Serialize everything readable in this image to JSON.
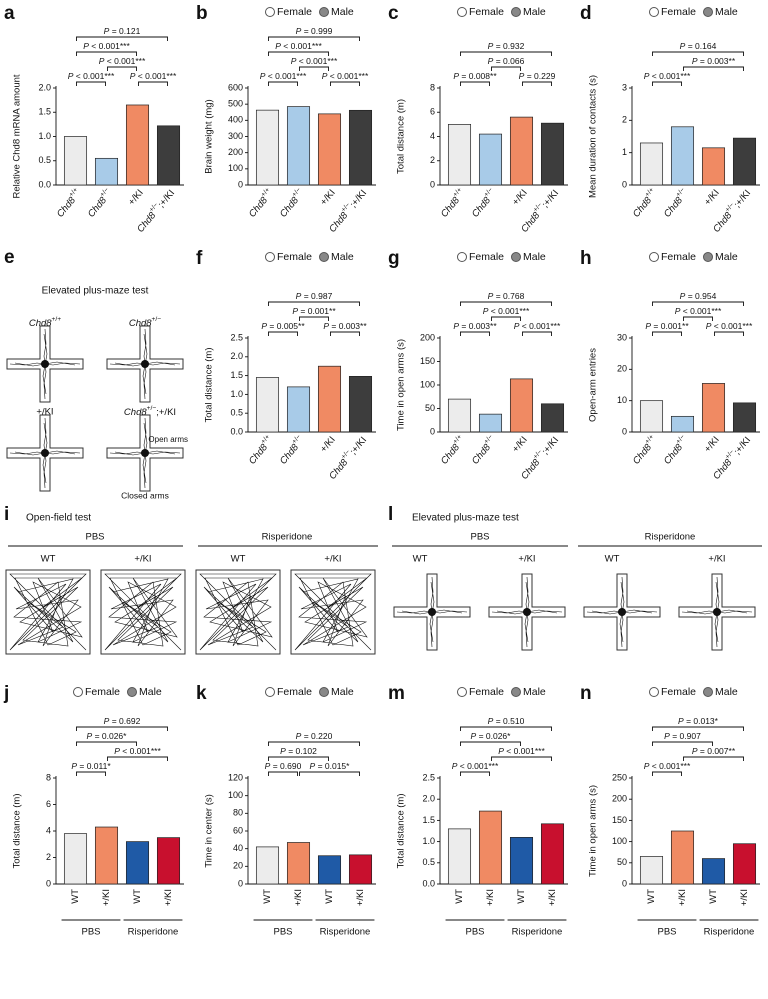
{
  "chart_data": [
    {
      "panel": "a",
      "type": "bar",
      "ylabel": "Relative Chd8 mRNA amount",
      "categories": [
        "Chd8+/+",
        "Chd8+/−",
        "+/KI",
        "Chd8+/−;+/KI"
      ],
      "values": [
        1.0,
        0.55,
        1.65,
        1.22
      ],
      "colors": [
        "#ececec",
        "#a8cbe8",
        "#f08a63",
        "#3d3d3d"
      ],
      "ylim": [
        0,
        2
      ],
      "yticks": [
        {
          "value": 0,
          "label": "0.0"
        },
        0.5,
        {
          "value": 1,
          "label": "1.0"
        },
        1.5,
        {
          "value": 2,
          "label": "2.0"
        }
      ],
      "comparisons": [
        {
          "pair": [
            0,
            1
          ],
          "label": "P < 0.001***"
        },
        {
          "pair": [
            1,
            2
          ],
          "label": "P < 0.001***"
        },
        {
          "pair": [
            2,
            3
          ],
          "label": "P < 0.001***"
        },
        {
          "pair": [
            0,
            2
          ],
          "label": "P < 0.001***"
        },
        {
          "pair": [
            0,
            3
          ],
          "label": "P = 0.121"
        }
      ]
    },
    {
      "panel": "b",
      "type": "bar",
      "ylabel": "Brain weight (mg)",
      "legend": [
        "Female",
        "Male"
      ],
      "categories": [
        "Chd8+/+",
        "Chd8+/−",
        "+/KI",
        "Chd8+/−;+/KI"
      ],
      "values": [
        463,
        485,
        440,
        462
      ],
      "colors": [
        "#ececec",
        "#a8cbe8",
        "#f08a63",
        "#3d3d3d"
      ],
      "ylim": [
        0,
        600
      ],
      "yticks": [
        0,
        100,
        200,
        300,
        400,
        500,
        600
      ],
      "comparisons": [
        {
          "pair": [
            0,
            1
          ],
          "label": "P < 0.001***"
        },
        {
          "pair": [
            1,
            2
          ],
          "label": "P < 0.001***"
        },
        {
          "pair": [
            2,
            3
          ],
          "label": "P < 0.001***"
        },
        {
          "pair": [
            0,
            2
          ],
          "label": "P < 0.001***"
        },
        {
          "pair": [
            0,
            3
          ],
          "label": "P = 0.999"
        }
      ]
    },
    {
      "panel": "c",
      "type": "bar",
      "ylabel": "Total distance (m)",
      "legend": [
        "Female",
        "Male"
      ],
      "categories": [
        "Chd8+/+",
        "Chd8+/−",
        "+/KI",
        "Chd8+/−;+/KI"
      ],
      "values": [
        5.0,
        4.2,
        5.6,
        5.1
      ],
      "colors": [
        "#ececec",
        "#a8cbe8",
        "#f08a63",
        "#3d3d3d"
      ],
      "ylim": [
        0,
        8
      ],
      "yticks": [
        0,
        2,
        4,
        6,
        8
      ],
      "comparisons": [
        {
          "pair": [
            0,
            1
          ],
          "label": "P = 0.008**"
        },
        {
          "pair": [
            1,
            2
          ],
          "label": "P = 0.066"
        },
        {
          "pair": [
            2,
            3
          ],
          "label": "P = 0.229"
        },
        {
          "pair": [
            0,
            3
          ],
          "label": "P = 0.932"
        }
      ]
    },
    {
      "panel": "d",
      "type": "bar",
      "ylabel": "Mean duration of contacts (s)",
      "legend": [
        "Female",
        "Male"
      ],
      "categories": [
        "Chd8+/+",
        "Chd8+/−",
        "+/KI",
        "Chd8+/−;+/KI"
      ],
      "values": [
        1.3,
        1.8,
        1.15,
        1.45
      ],
      "colors": [
        "#ececec",
        "#a8cbe8",
        "#f08a63",
        "#3d3d3d"
      ],
      "ylim": [
        0,
        3
      ],
      "yticks": [
        0,
        1,
        2,
        3
      ],
      "comparisons": [
        {
          "pair": [
            0,
            1
          ],
          "label": "P < 0.001***"
        },
        {
          "pair": [
            1,
            3
          ],
          "label": "P = 0.003**"
        },
        {
          "pair": [
            0,
            3
          ],
          "label": "P = 0.164"
        }
      ]
    },
    {
      "panel": "f",
      "type": "bar",
      "ylabel": "Total distance (m)",
      "legend": [
        "Female",
        "Male"
      ],
      "categories": [
        "Chd8+/+",
        "Chd8+/−",
        "+/KI",
        "Chd8+/−;+/KI"
      ],
      "values": [
        1.45,
        1.2,
        1.75,
        1.48
      ],
      "colors": [
        "#ececec",
        "#a8cbe8",
        "#f08a63",
        "#3d3d3d"
      ],
      "ylim": [
        0,
        2.5
      ],
      "yticks": [
        {
          "value": 0,
          "label": "0.0"
        },
        0.5,
        {
          "value": 1,
          "label": "1.0"
        },
        1.5,
        {
          "value": 2,
          "label": "2.0"
        },
        2.5
      ],
      "comparisons": [
        {
          "pair": [
            0,
            1
          ],
          "label": "P = 0.005**"
        },
        {
          "pair": [
            1,
            2
          ],
          "label": "P = 0.001**"
        },
        {
          "pair": [
            2,
            3
          ],
          "label": "P = 0.003**"
        },
        {
          "pair": [
            0,
            3
          ],
          "label": "P = 0.987"
        }
      ]
    },
    {
      "panel": "g",
      "type": "bar",
      "ylabel": "Time in open arms (s)",
      "legend": [
        "Female",
        "Male"
      ],
      "categories": [
        "Chd8+/+",
        "Chd8+/−",
        "+/KI",
        "Chd8+/−;+/KI"
      ],
      "values": [
        70,
        38,
        113,
        60
      ],
      "colors": [
        "#ececec",
        "#a8cbe8",
        "#f08a63",
        "#3d3d3d"
      ],
      "ylim": [
        0,
        200
      ],
      "yticks": [
        0,
        50,
        100,
        150,
        200
      ],
      "comparisons": [
        {
          "pair": [
            0,
            1
          ],
          "label": "P = 0.003**"
        },
        {
          "pair": [
            1,
            2
          ],
          "label": "P < 0.001***"
        },
        {
          "pair": [
            2,
            3
          ],
          "label": "P < 0.001***"
        },
        {
          "pair": [
            0,
            3
          ],
          "label": "P = 0.768"
        }
      ]
    },
    {
      "panel": "h",
      "type": "bar",
      "ylabel": "Open-arm entries",
      "legend": [
        "Female",
        "Male"
      ],
      "categories": [
        "Chd8+/+",
        "Chd8+/−",
        "+/KI",
        "Chd8+/−;+/KI"
      ],
      "values": [
        10,
        5,
        15.5,
        9.3
      ],
      "colors": [
        "#ececec",
        "#a8cbe8",
        "#f08a63",
        "#3d3d3d"
      ],
      "ylim": [
        0,
        30
      ],
      "yticks": [
        0,
        10,
        20,
        30
      ],
      "comparisons": [
        {
          "pair": [
            0,
            1
          ],
          "label": "P = 0.001**"
        },
        {
          "pair": [
            1,
            2
          ],
          "label": "P < 0.001***"
        },
        {
          "pair": [
            2,
            3
          ],
          "label": "P < 0.001***"
        },
        {
          "pair": [
            0,
            3
          ],
          "label": "P = 0.954"
        }
      ]
    },
    {
      "panel": "j",
      "type": "bar",
      "ylabel": "Total distance (m)",
      "legend": [
        "Female",
        "Male"
      ],
      "categories": [
        "WT",
        "+/KI",
        "WT",
        "+/KI"
      ],
      "groups": [
        "PBS",
        "Risperidone"
      ],
      "values": [
        3.8,
        4.3,
        3.2,
        3.5
      ],
      "colors": [
        "#ececec",
        "#f08a63",
        "#1f5aa6",
        "#c8102e"
      ],
      "ylim": [
        0,
        8
      ],
      "yticks": [
        0,
        2,
        4,
        6,
        8
      ],
      "comparisons": [
        {
          "pair": [
            0,
            1
          ],
          "label": "P = 0.011*"
        },
        {
          "pair": [
            1,
            3
          ],
          "label": "P < 0.001***"
        },
        {
          "pair": [
            0,
            2
          ],
          "label": "P = 0.026*"
        },
        {
          "pair": [
            0,
            3
          ],
          "label": "P = 0.692"
        }
      ]
    },
    {
      "panel": "k",
      "type": "bar",
      "ylabel": "Time in center (s)",
      "legend": [
        "Female",
        "Male"
      ],
      "categories": [
        "WT",
        "+/KI",
        "WT",
        "+/KI"
      ],
      "groups": [
        "PBS",
        "Risperidone"
      ],
      "values": [
        42,
        47,
        32,
        33
      ],
      "colors": [
        "#ececec",
        "#f08a63",
        "#1f5aa6",
        "#c8102e"
      ],
      "ylim": [
        0,
        120
      ],
      "yticks": [
        0,
        20,
        40,
        60,
        80,
        100,
        120
      ],
      "comparisons": [
        {
          "pair": [
            0,
            1
          ],
          "label": "P = 0.690"
        },
        {
          "pair": [
            1,
            3
          ],
          "label": "P = 0.015*"
        },
        {
          "pair": [
            0,
            2
          ],
          "label": "P = 0.102"
        },
        {
          "pair": [
            0,
            3
          ],
          "label": "P = 0.220"
        }
      ]
    },
    {
      "panel": "m",
      "type": "bar",
      "ylabel": "Total distance (m)",
      "legend": [
        "Female",
        "Male"
      ],
      "categories": [
        "WT",
        "+/KI",
        "WT",
        "+/KI"
      ],
      "groups": [
        "PBS",
        "Risperidone"
      ],
      "values": [
        1.3,
        1.72,
        1.1,
        1.42
      ],
      "colors": [
        "#ececec",
        "#f08a63",
        "#1f5aa6",
        "#c8102e"
      ],
      "ylim": [
        0,
        2.5
      ],
      "yticks": [
        {
          "value": 0,
          "label": "0.0"
        },
        0.5,
        {
          "value": 1,
          "label": "1.0"
        },
        1.5,
        {
          "value": 2,
          "label": "2.0"
        },
        2.5
      ],
      "comparisons": [
        {
          "pair": [
            0,
            1
          ],
          "label": "P < 0.001***"
        },
        {
          "pair": [
            1,
            3
          ],
          "label": "P < 0.001***"
        },
        {
          "pair": [
            0,
            2
          ],
          "label": "P = 0.026*"
        },
        {
          "pair": [
            0,
            3
          ],
          "label": "P = 0.510"
        }
      ]
    },
    {
      "panel": "n",
      "type": "bar",
      "ylabel": "Time in open arms (s)",
      "legend": [
        "Female",
        "Male"
      ],
      "categories": [
        "WT",
        "+/KI",
        "WT",
        "+/KI"
      ],
      "groups": [
        "PBS",
        "Risperidone"
      ],
      "values": [
        65,
        125,
        60,
        95
      ],
      "colors": [
        "#ececec",
        "#f08a63",
        "#1f5aa6",
        "#c8102e"
      ],
      "ylim": [
        0,
        250
      ],
      "yticks": [
        0,
        50,
        100,
        150,
        200,
        250
      ],
      "comparisons": [
        {
          "pair": [
            0,
            1
          ],
          "label": "P < 0.001***"
        },
        {
          "pair": [
            1,
            3
          ],
          "label": "P = 0.007**"
        },
        {
          "pair": [
            0,
            2
          ],
          "label": "P = 0.907"
        },
        {
          "pair": [
            0,
            3
          ],
          "label": "P = 0.013*"
        }
      ]
    }
  ],
  "panels": [
    {
      "letter": "e",
      "title": "Elevated plus-maze test",
      "labels": [
        "Chd8+/+",
        "Chd8+/−",
        "+/KI",
        "Chd8+/−;+/KI"
      ],
      "open": "Open arms",
      "closed": "Closed arms"
    },
    {
      "letter": "i",
      "title": "Open-field test",
      "groups": [
        "PBS",
        "Risperidone"
      ],
      "labels": [
        "WT",
        "+/KI",
        "WT",
        "+/KI"
      ]
    },
    {
      "letter": "l",
      "title": "Elevated plus-maze test",
      "groups": [
        "PBS",
        "Risperidone"
      ],
      "labels": [
        "WT",
        "+/KI",
        "WT",
        "+/KI"
      ]
    }
  ]
}
